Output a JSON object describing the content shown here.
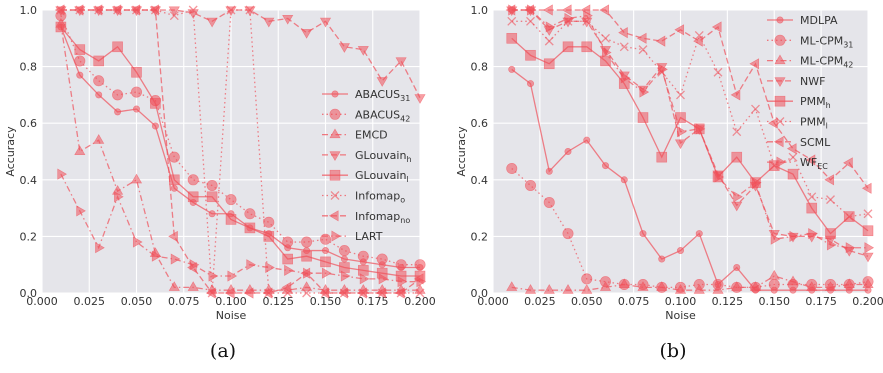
{
  "style": {
    "marker_color": "#f0505a",
    "plot_background": "#e5e5ea",
    "grid_color": "#ffffff"
  },
  "chart_data": [
    {
      "type": "line",
      "caption": "(a)",
      "xlabel": "Noise",
      "ylabel": "Accuracy",
      "xlim": [
        0.0,
        0.2
      ],
      "ylim": [
        0.0,
        1.0
      ],
      "xticks": [
        "0.000",
        "0.025",
        "0.050",
        "0.075",
        "0.100",
        "0.125",
        "0.150",
        "0.175",
        "0.200"
      ],
      "yticks": [
        "0.0",
        "0.2",
        "0.4",
        "0.6",
        "0.8",
        "1.0"
      ],
      "grid": true,
      "legend": "center-right",
      "x": [
        0.01,
        0.02,
        0.03,
        0.04,
        0.05,
        0.06,
        0.07,
        0.08,
        0.09,
        0.1,
        0.11,
        0.12,
        0.13,
        0.14,
        0.15,
        0.16,
        0.17,
        0.18,
        0.19,
        0.2
      ],
      "series": [
        {
          "name": "ABACUS",
          "sub": "31",
          "marker": "circle",
          "dash": "solid",
          "values": [
            0.94,
            0.77,
            0.7,
            0.64,
            0.65,
            0.59,
            0.37,
            0.32,
            0.28,
            0.28,
            0.23,
            0.21,
            0.16,
            0.15,
            0.15,
            0.12,
            0.11,
            0.1,
            0.09,
            0.09
          ]
        },
        {
          "name": "ABACUS",
          "sub": "42",
          "marker": "circle-large",
          "dash": "dotted",
          "values": [
            0.98,
            0.82,
            0.75,
            0.7,
            0.71,
            0.68,
            0.48,
            0.4,
            0.38,
            0.33,
            0.28,
            0.25,
            0.18,
            0.18,
            0.19,
            0.15,
            0.13,
            0.12,
            0.1,
            0.1
          ]
        },
        {
          "name": "EMCD",
          "sub": "",
          "marker": "triangle-up",
          "dash": "dashdot",
          "values": [
            0.95,
            0.5,
            0.54,
            0.36,
            0.4,
            0.14,
            0.02,
            0.02,
            0.01,
            0.01,
            0.01,
            0.01,
            0.01,
            0.02,
            0.01,
            0.01,
            0.01,
            0.01,
            0.01,
            0.01
          ]
        },
        {
          "name": "GLouvain",
          "sub": "h",
          "marker": "triangle-down",
          "dash": "dashed",
          "values": [
            1.0,
            1.0,
            1.0,
            1.0,
            1.0,
            1.0,
            1.0,
            0.99,
            0.96,
            1.0,
            1.0,
            0.96,
            0.97,
            0.92,
            0.96,
            0.87,
            0.86,
            0.75,
            0.82,
            0.69
          ]
        },
        {
          "name": "GLouvain",
          "sub": "l",
          "marker": "square",
          "dash": "solid",
          "values": [
            0.94,
            0.86,
            0.82,
            0.87,
            0.78,
            0.67,
            0.4,
            0.34,
            0.34,
            0.26,
            0.23,
            0.2,
            0.12,
            0.13,
            0.11,
            0.09,
            0.08,
            0.07,
            0.06,
            0.06
          ]
        },
        {
          "name": "Infomap",
          "sub": "o",
          "marker": "x",
          "dash": "dotted",
          "values": [
            1.0,
            1.0,
            1.0,
            1.0,
            1.0,
            1.0,
            0.98,
            1.0,
            0.0,
            1.0,
            1.0,
            0.0,
            0.0,
            0.0,
            0.0,
            0.0,
            0.0,
            0.0,
            0.0,
            0.0
          ]
        },
        {
          "name": "Infomap",
          "sub": "no",
          "marker": "triangle-left",
          "dash": "dashed",
          "values": [
            1.0,
            1.0,
            1.0,
            1.0,
            1.0,
            1.0,
            0.2,
            0.09,
            0.0,
            0.0,
            0.0,
            0.0,
            0.02,
            0.07,
            0.0,
            0.0,
            0.0,
            0.0,
            0.0,
            0.05
          ]
        },
        {
          "name": "LART",
          "sub": "",
          "marker": "triangle-right",
          "dash": "dashdot",
          "values": [
            0.42,
            0.29,
            0.16,
            0.34,
            0.18,
            0.13,
            0.12,
            0.1,
            0.06,
            0.06,
            0.1,
            0.09,
            0.08,
            0.07,
            0.07,
            0.06,
            0.05,
            0.05,
            0.04,
            0.04
          ]
        }
      ]
    },
    {
      "type": "line",
      "caption": "(b)",
      "xlabel": "Noise",
      "ylabel": "Accuracy",
      "xlim": [
        0.0,
        0.2
      ],
      "ylim": [
        0.0,
        1.0
      ],
      "xticks": [
        "0.000",
        "0.025",
        "0.050",
        "0.075",
        "0.100",
        "0.125",
        "0.150",
        "0.175",
        "0.200"
      ],
      "yticks": [
        "0.0",
        "0.2",
        "0.4",
        "0.6",
        "0.8",
        "1.0"
      ],
      "grid": true,
      "legend": "top-right",
      "x": [
        0.01,
        0.02,
        0.03,
        0.04,
        0.05,
        0.06,
        0.07,
        0.08,
        0.09,
        0.1,
        0.11,
        0.12,
        0.13,
        0.14,
        0.15,
        0.16,
        0.17,
        0.18,
        0.19,
        0.2
      ],
      "series": [
        {
          "name": "MDLPA",
          "sub": "",
          "marker": "circle",
          "dash": "solid",
          "values": [
            0.79,
            0.74,
            0.43,
            0.5,
            0.54,
            0.45,
            0.4,
            0.21,
            0.12,
            0.15,
            0.21,
            0.03,
            0.09,
            0.01,
            0.01,
            0.01,
            0.01,
            0.01,
            0.01,
            0.01
          ]
        },
        {
          "name": "ML-CPM",
          "sub": "31",
          "marker": "circle-large",
          "dash": "dotted",
          "values": [
            0.44,
            0.38,
            0.32,
            0.21,
            0.05,
            0.04,
            0.03,
            0.03,
            0.02,
            0.02,
            0.03,
            0.03,
            0.02,
            0.02,
            0.03,
            0.03,
            0.03,
            0.03,
            0.03,
            0.04
          ]
        },
        {
          "name": "ML-CPM",
          "sub": "42",
          "marker": "triangle-up",
          "dash": "dashdot",
          "values": [
            0.02,
            0.01,
            0.01,
            0.01,
            0.01,
            0.02,
            0.03,
            0.02,
            0.02,
            0.01,
            0.01,
            0.01,
            0.02,
            0.02,
            0.06,
            0.04,
            0.02,
            0.02,
            0.03,
            0.03
          ]
        },
        {
          "name": "NWF",
          "sub": "",
          "marker": "triangle-down",
          "dash": "dashed",
          "values": [
            1.0,
            1.0,
            0.93,
            0.96,
            0.96,
            0.86,
            0.77,
            0.72,
            0.8,
            0.53,
            0.58,
            0.42,
            0.31,
            0.38,
            0.21,
            0.2,
            0.2,
            0.19,
            0.15,
            0.13
          ]
        },
        {
          "name": "PMM",
          "sub": "h",
          "marker": "square",
          "dash": "solid",
          "values": [
            0.9,
            0.84,
            0.81,
            0.87,
            0.87,
            0.82,
            0.74,
            0.62,
            0.48,
            0.62,
            0.58,
            0.41,
            0.48,
            0.39,
            0.45,
            0.42,
            0.3,
            0.21,
            0.27,
            0.22
          ]
        },
        {
          "name": "PMM",
          "sub": "l",
          "marker": "x",
          "dash": "dotted",
          "values": [
            0.96,
            0.96,
            0.89,
            0.96,
            0.96,
            0.9,
            0.87,
            0.86,
            0.78,
            0.7,
            0.91,
            0.78,
            0.57,
            0.65,
            0.45,
            0.48,
            0.34,
            0.33,
            0.27,
            0.28
          ]
        },
        {
          "name": "SCML",
          "sub": "",
          "marker": "triangle-left",
          "dash": "dashed",
          "values": [
            1.0,
            1.0,
            1.0,
            1.0,
            1.0,
            1.0,
            0.92,
            0.9,
            0.89,
            0.93,
            0.89,
            0.94,
            0.7,
            0.81,
            0.6,
            0.51,
            0.47,
            0.4,
            0.46,
            0.37
          ]
        },
        {
          "name": "WF",
          "sub": "EC",
          "marker": "triangle-right",
          "dash": "dashdot",
          "values": [
            1.0,
            1.0,
            0.94,
            0.97,
            0.98,
            0.85,
            0.76,
            0.71,
            0.79,
            0.57,
            0.58,
            0.41,
            0.34,
            0.39,
            0.19,
            0.2,
            0.21,
            0.17,
            0.16,
            0.16
          ]
        }
      ]
    }
  ]
}
